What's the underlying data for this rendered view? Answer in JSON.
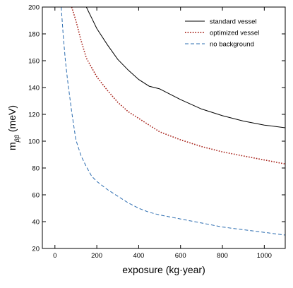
{
  "chart_data": {
    "type": "line",
    "title": "",
    "xlabel": "exposure (kg·year)",
    "ylabel_main": "m",
    "ylabel_sub": "ββ",
    "ylabel_unit": " (meV)",
    "xlim": [
      -60,
      1100
    ],
    "ylim": [
      20,
      200
    ],
    "xticks": [
      0,
      200,
      400,
      600,
      800,
      1000
    ],
    "yticks": [
      20,
      40,
      60,
      80,
      100,
      120,
      140,
      160,
      180,
      200
    ],
    "grid": false,
    "legend_position": "top-right",
    "series": [
      {
        "name": "standard vessel",
        "color": "#000000",
        "style": "solid",
        "x": [
          150,
          175,
          200,
          250,
          300,
          350,
          400,
          450,
          500,
          600,
          700,
          800,
          900,
          1000,
          1100
        ],
        "y": [
          200,
          192,
          184,
          172,
          161,
          153,
          146,
          141,
          139,
          131,
          124,
          119,
          115,
          112,
          110
        ]
      },
      {
        "name": "optimized vessel",
        "color": "#a8231b",
        "style": "dotted",
        "x": [
          80,
          100,
          125,
          150,
          175,
          200,
          250,
          300,
          350,
          400,
          450,
          500,
          600,
          700,
          800,
          900,
          1000,
          1100
        ],
        "y": [
          200,
          190,
          175,
          162,
          155,
          148,
          138,
          129,
          122,
          117,
          112,
          107,
          101,
          96,
          92,
          89,
          86,
          83
        ]
      },
      {
        "name": "no background",
        "color": "#2b6cb0",
        "style": "dashed",
        "x": [
          30,
          40,
          50,
          60,
          70,
          80,
          100,
          125,
          150,
          175,
          200,
          250,
          300,
          350,
          400,
          450,
          500,
          600,
          700,
          800,
          900,
          1000,
          1100
        ],
        "y": [
          200,
          178,
          160,
          146,
          134,
          122,
          101,
          89,
          81,
          74,
          70,
          64,
          59,
          54,
          50,
          47,
          45,
          42,
          39,
          36,
          34,
          32,
          30
        ]
      }
    ]
  }
}
